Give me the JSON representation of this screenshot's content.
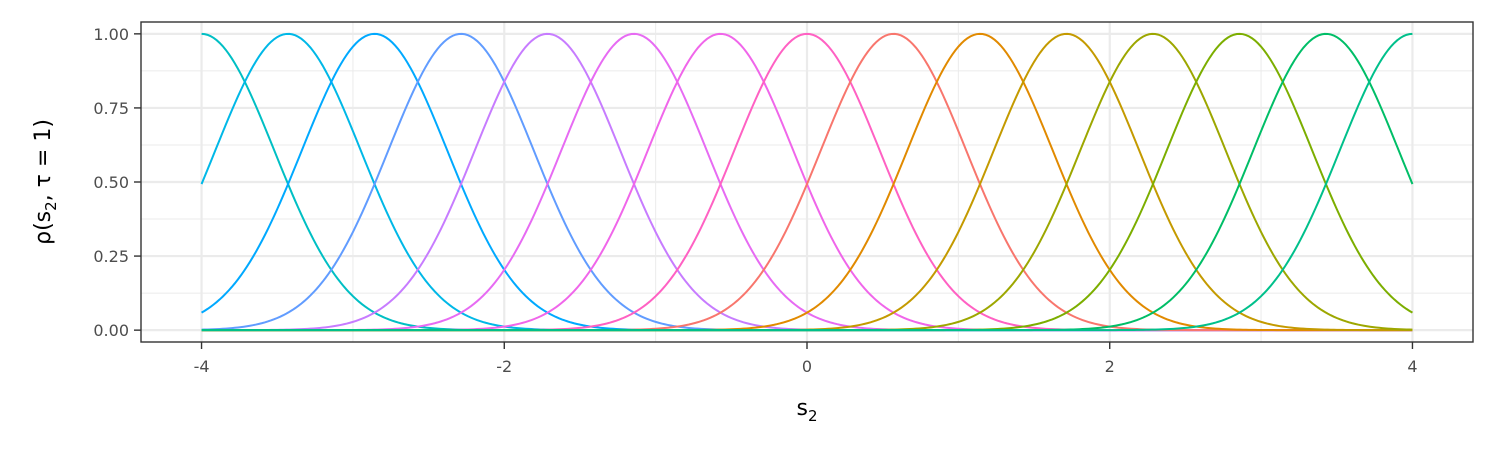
{
  "chart_data": {
    "type": "line",
    "title": "",
    "xlabel": {
      "main": "s",
      "sub": "2"
    },
    "ylabel": {
      "prefix": "ρ(s",
      "sub": "2",
      "suffix": ", τ = 1)"
    },
    "xlim": [
      -4.4,
      4.4
    ],
    "ylim": [
      -0.04,
      1.04
    ],
    "x_ticks": [
      -4,
      -2,
      0,
      2,
      4
    ],
    "x_tick_labels": [
      "-4",
      "-2",
      "0",
      "2",
      "4"
    ],
    "y_ticks": [
      0,
      0.25,
      0.5,
      0.75,
      1
    ],
    "y_tick_labels": [
      "0.00",
      "0.25",
      "0.50",
      "0.75",
      "1.00"
    ],
    "grid": true,
    "legend": "none",
    "curve_shape": "gaussian",
    "width_parameter_tau": 1,
    "series": [
      {
        "center": -4.0,
        "color": "#00BFC4"
      },
      {
        "center": -3.4286,
        "color": "#00B8E7"
      },
      {
        "center": -2.8571,
        "color": "#00A9FF"
      },
      {
        "center": -2.2857,
        "color": "#619CFF"
      },
      {
        "center": -1.7143,
        "color": "#C77CFF"
      },
      {
        "center": -1.1429,
        "color": "#E76BF3"
      },
      {
        "center": -0.5714,
        "color": "#F066EA"
      },
      {
        "center": 0.0,
        "color": "#FF61C3"
      },
      {
        "center": 0.5714,
        "color": "#F8766D"
      },
      {
        "center": 1.1429,
        "color": "#E18A00"
      },
      {
        "center": 1.7143,
        "color": "#C49A00"
      },
      {
        "center": 2.2857,
        "color": "#9DA700"
      },
      {
        "center": 2.8571,
        "color": "#7CAE00"
      },
      {
        "center": 3.4286,
        "color": "#00BE67"
      },
      {
        "center": 4.0,
        "color": "#00C08B"
      }
    ]
  }
}
